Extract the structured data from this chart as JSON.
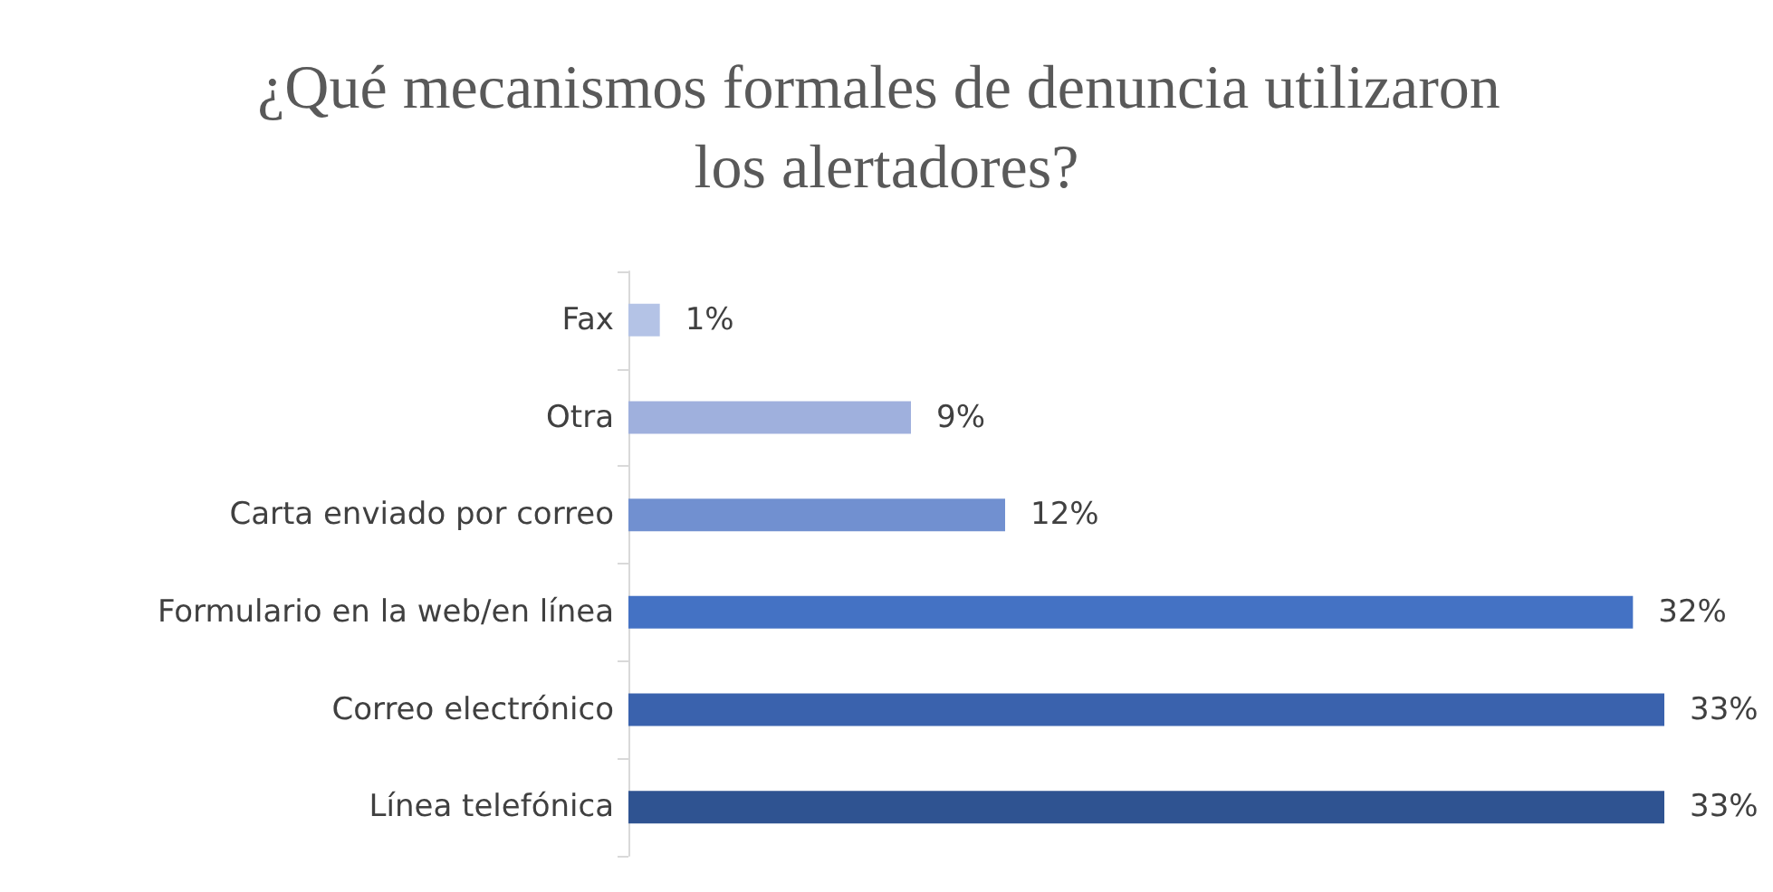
{
  "chart_data": {
    "type": "bar",
    "orientation": "horizontal",
    "title": "¿Qué mecanismos formales de denuncia utilizaron los alertadores?",
    "categories": [
      "Fax",
      "Otra",
      "Carta enviado por correo",
      "Formulario en la web/en línea",
      "Correo electrónico",
      "Línea telefónica"
    ],
    "values": [
      1,
      9,
      12,
      32,
      33,
      33
    ],
    "value_labels": [
      "1%",
      "9%",
      "12%",
      "32%",
      "33%",
      "33%"
    ],
    "colors": [
      "#b4c3e6",
      "#9fb0dd",
      "#7190d0",
      "#4472c4",
      "#3a62ad",
      "#2f5391"
    ]
  }
}
